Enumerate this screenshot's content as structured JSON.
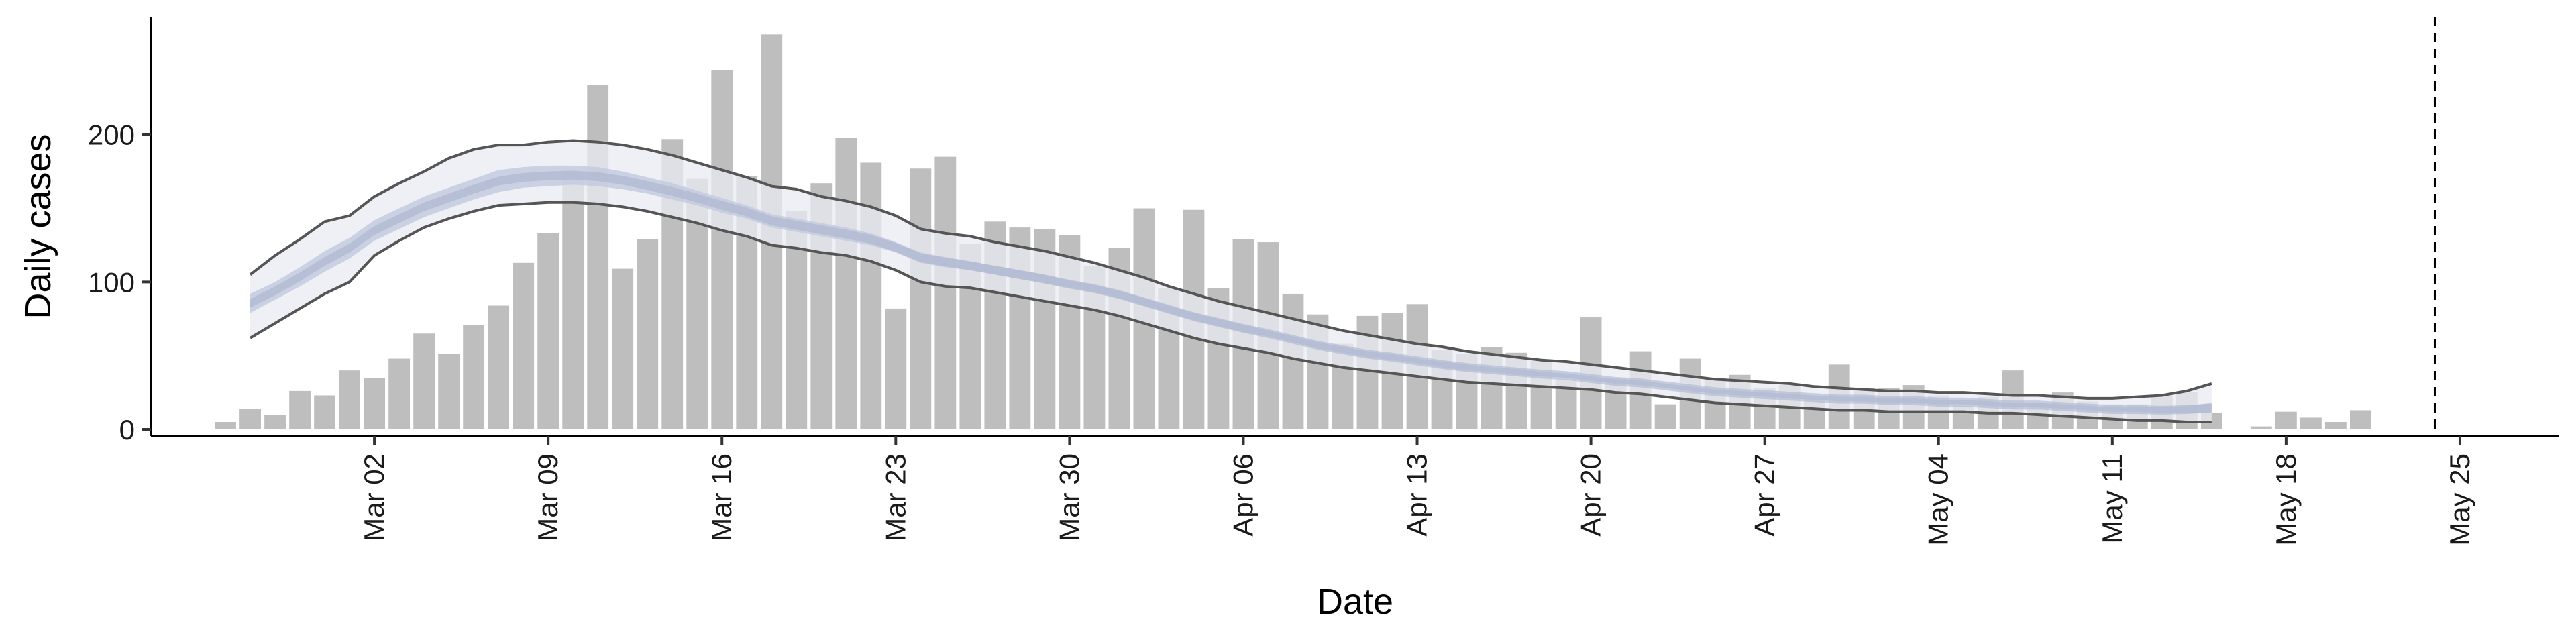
{
  "chart_data": {
    "type": "bar",
    "xlabel": "Date",
    "ylabel": "Daily cases",
    "xlim": [
      "2020-02-22",
      "2020-05-29"
    ],
    "ylim": [
      0,
      280
    ],
    "yticks": [
      0,
      100,
      200
    ],
    "xticks": [
      {
        "date": "2020-03-02",
        "label": "Mar 02"
      },
      {
        "date": "2020-03-09",
        "label": "Mar 09"
      },
      {
        "date": "2020-03-16",
        "label": "Mar 16"
      },
      {
        "date": "2020-03-23",
        "label": "Mar 23"
      },
      {
        "date": "2020-03-30",
        "label": "Mar 30"
      },
      {
        "date": "2020-04-06",
        "label": "Apr 06"
      },
      {
        "date": "2020-04-13",
        "label": "Apr 13"
      },
      {
        "date": "2020-04-20",
        "label": "Apr 20"
      },
      {
        "date": "2020-04-27",
        "label": "Apr 27"
      },
      {
        "date": "2020-05-04",
        "label": "May 04"
      },
      {
        "date": "2020-05-11",
        "label": "May 11"
      },
      {
        "date": "2020-05-18",
        "label": "May 18"
      },
      {
        "date": "2020-05-25",
        "label": "May 25"
      }
    ],
    "grid": false,
    "legend": "none",
    "bars": {
      "start_date": "2020-02-25",
      "color": "#bebebe",
      "values": [
        5,
        14,
        10,
        26,
        23,
        40,
        35,
        48,
        65,
        51,
        71,
        84,
        113,
        133,
        174,
        234,
        109,
        129,
        197,
        170,
        244,
        172,
        268,
        148,
        167,
        198,
        181,
        82,
        177,
        185,
        126,
        141,
        137,
        136,
        132,
        111,
        123,
        150,
        96,
        149,
        96,
        129,
        127,
        92,
        78,
        58,
        77,
        79,
        85,
        54,
        51,
        56,
        52,
        47,
        34,
        76,
        35,
        53,
        17,
        48,
        35,
        37,
        28,
        30,
        21,
        44,
        28,
        28,
        30,
        23,
        16,
        22,
        40,
        18,
        25,
        19,
        17,
        17,
        23,
        25,
        11,
        0,
        2,
        12,
        8,
        5,
        13
      ]
    },
    "band": {
      "start_date": "2020-02-26",
      "outer_color": "#e8ebf3",
      "inner_color": "#c1c9dd",
      "mid_color": "#a7b1cd",
      "lower": [
        62,
        72,
        82,
        92,
        100,
        118,
        128,
        137,
        143,
        148,
        152,
        153,
        154,
        154,
        153,
        151,
        148,
        144,
        140,
        135,
        131,
        125,
        123,
        120,
        118,
        114,
        108,
        100,
        97,
        96,
        93,
        90,
        87,
        84,
        81,
        77,
        72,
        67,
        62,
        58,
        55,
        52,
        48,
        45,
        42,
        40,
        38,
        36,
        34,
        32,
        31,
        30,
        29,
        28,
        27,
        25,
        24,
        22,
        20,
        18,
        17,
        16,
        15,
        14,
        13,
        13,
        12,
        12,
        12,
        12,
        11,
        11,
        10,
        9,
        8,
        7,
        6,
        6,
        5,
        5
      ],
      "inner_lower": [
        79,
        88,
        97,
        107,
        116,
        128,
        136,
        144,
        150,
        156,
        161,
        164,
        165,
        166,
        165,
        163,
        160,
        156,
        152,
        147,
        143,
        137,
        134,
        131,
        128,
        125,
        120,
        113,
        110,
        108,
        105,
        102,
        99,
        96,
        93,
        89,
        84,
        79,
        74,
        70,
        66,
        63,
        59,
        55,
        52,
        49,
        47,
        45,
        42,
        40,
        39,
        37,
        36,
        35,
        33,
        31,
        30,
        28,
        26,
        24,
        23,
        22,
        21,
        20,
        19,
        19,
        18,
        18,
        17,
        17,
        16,
        15,
        15,
        14,
        13,
        12,
        12,
        11,
        11,
        11
      ],
      "inner_upper": [
        92,
        100,
        110,
        121,
        130,
        142,
        150,
        158,
        164,
        170,
        176,
        178,
        179,
        179,
        178,
        175,
        171,
        167,
        162,
        157,
        152,
        146,
        143,
        140,
        137,
        133,
        127,
        120,
        117,
        114,
        111,
        108,
        105,
        101,
        98,
        94,
        89,
        84,
        79,
        75,
        71,
        67,
        63,
        59,
        56,
        53,
        51,
        48,
        46,
        44,
        42,
        41,
        39,
        38,
        36,
        34,
        33,
        31,
        29,
        27,
        26,
        25,
        24,
        23,
        22,
        22,
        21,
        21,
        20,
        20,
        19,
        18,
        18,
        17,
        16,
        15,
        15,
        15,
        16,
        18
      ],
      "upper": [
        105,
        118,
        129,
        141,
        145,
        158,
        167,
        175,
        184,
        190,
        193,
        193,
        195,
        196,
        195,
        193,
        190,
        186,
        181,
        176,
        171,
        165,
        163,
        158,
        155,
        151,
        145,
        136,
        133,
        131,
        127,
        124,
        121,
        117,
        113,
        108,
        103,
        97,
        92,
        87,
        83,
        79,
        75,
        71,
        67,
        64,
        61,
        58,
        56,
        53,
        51,
        49,
        47,
        46,
        44,
        42,
        40,
        38,
        36,
        34,
        33,
        32,
        31,
        29,
        28,
        27,
        26,
        26,
        25,
        25,
        24,
        23,
        23,
        22,
        21,
        21,
        22,
        23,
        26,
        31
      ]
    },
    "vline": {
      "date": "2020-05-24",
      "style": "dashed",
      "color": "#000000"
    }
  }
}
